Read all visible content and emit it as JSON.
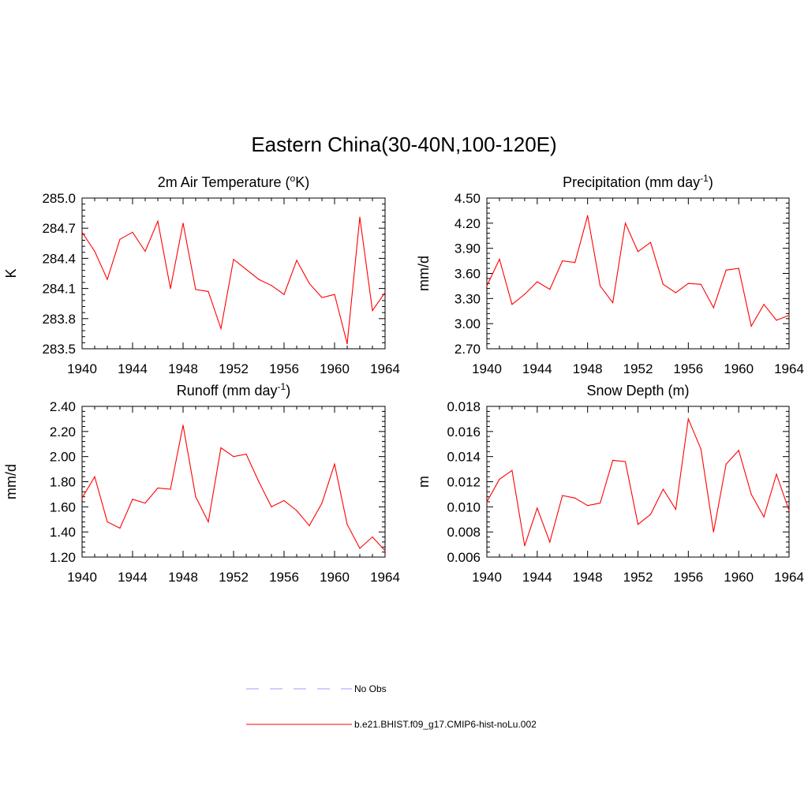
{
  "figure_title": "Eastern China(30-40N,100-120E)",
  "legend": {
    "entries": [
      {
        "label": "No Obs",
        "style": "dashed",
        "color": "#b0b0ff"
      },
      {
        "label": "b.e21.BHIST.f09_g17.CMIP6-hist-noLu.002",
        "style": "solid",
        "color": "#ff0000"
      }
    ]
  },
  "chart_data": [
    {
      "type": "line",
      "title": "2m Air Temperature (°K)",
      "title_parts": [
        "2m Air Temperature (",
        "o",
        "K)"
      ],
      "xlabel": "",
      "ylabel": "K",
      "xlim": [
        1940,
        1964
      ],
      "ylim": [
        283.5,
        285.0
      ],
      "x_ticks": [
        1940,
        1944,
        1948,
        1952,
        1956,
        1960,
        1964
      ],
      "y_ticks": [
        "283.5",
        "283.8",
        "284.1",
        "284.4",
        "284.7",
        "285.0"
      ],
      "series": [
        {
          "color": "#ff0000",
          "x": [
            1940,
            1941,
            1942,
            1943,
            1944,
            1945,
            1946,
            1947,
            1948,
            1949,
            1950,
            1951,
            1952,
            1953,
            1954,
            1955,
            1956,
            1957,
            1958,
            1959,
            1960,
            1961,
            1962,
            1963,
            1964
          ],
          "y": [
            284.66,
            284.47,
            284.19,
            284.59,
            284.66,
            284.47,
            284.77,
            284.1,
            284.75,
            284.09,
            284.07,
            283.7,
            284.39,
            284.29,
            284.19,
            284.13,
            284.04,
            284.38,
            284.15,
            284.01,
            284.04,
            283.55,
            284.81,
            283.88,
            284.06
          ]
        }
      ]
    },
    {
      "type": "line",
      "title": "Precipitation (mm day-1)",
      "title_parts": [
        "Precipitation (mm day",
        "-1",
        ")"
      ],
      "xlabel": "",
      "ylabel": "mm/d",
      "xlim": [
        1940,
        1964
      ],
      "ylim": [
        2.7,
        4.5
      ],
      "x_ticks": [
        1940,
        1944,
        1948,
        1952,
        1956,
        1960,
        1964
      ],
      "y_ticks": [
        "2.70",
        "3.00",
        "3.30",
        "3.60",
        "3.90",
        "4.20",
        "4.50"
      ],
      "series": [
        {
          "color": "#ff0000",
          "x": [
            1940,
            1941,
            1942,
            1943,
            1944,
            1945,
            1946,
            1947,
            1948,
            1949,
            1950,
            1951,
            1952,
            1953,
            1954,
            1955,
            1956,
            1957,
            1958,
            1959,
            1960,
            1961,
            1962,
            1963,
            1964
          ],
          "y": [
            3.45,
            3.77,
            3.23,
            3.35,
            3.5,
            3.41,
            3.75,
            3.73,
            4.29,
            3.45,
            3.25,
            4.2,
            3.86,
            3.97,
            3.47,
            3.37,
            3.48,
            3.47,
            3.19,
            3.64,
            3.66,
            2.97,
            3.23,
            3.04,
            3.1
          ]
        }
      ]
    },
    {
      "type": "line",
      "title": "Runoff (mm day-1)",
      "title_parts": [
        "Runoff (mm day",
        "-1",
        ")"
      ],
      "xlabel": "",
      "ylabel": "mm/d",
      "xlim": [
        1940,
        1964
      ],
      "ylim": [
        1.2,
        2.4
      ],
      "x_ticks": [
        1940,
        1944,
        1948,
        1952,
        1956,
        1960,
        1964
      ],
      "y_ticks": [
        "1.20",
        "1.40",
        "1.60",
        "1.80",
        "2.00",
        "2.20",
        "2.40"
      ],
      "series": [
        {
          "color": "#ff0000",
          "x": [
            1940,
            1941,
            1942,
            1943,
            1944,
            1945,
            1946,
            1947,
            1948,
            1949,
            1950,
            1951,
            1952,
            1953,
            1954,
            1955,
            1956,
            1957,
            1958,
            1959,
            1960,
            1961,
            1962,
            1963,
            1964
          ],
          "y": [
            1.67,
            1.84,
            1.48,
            1.43,
            1.66,
            1.63,
            1.75,
            1.74,
            2.25,
            1.68,
            1.48,
            2.07,
            2.0,
            2.02,
            1.8,
            1.6,
            1.65,
            1.57,
            1.45,
            1.63,
            1.94,
            1.46,
            1.27,
            1.36,
            1.25
          ]
        }
      ]
    },
    {
      "type": "line",
      "title": "Snow Depth (m)",
      "title_parts": [
        "Snow Depth (m)"
      ],
      "xlabel": "",
      "ylabel": "m",
      "xlim": [
        1940,
        1964
      ],
      "ylim": [
        0.006,
        0.018
      ],
      "x_ticks": [
        1940,
        1944,
        1948,
        1952,
        1956,
        1960,
        1964
      ],
      "y_ticks": [
        "0.006",
        "0.008",
        "0.010",
        "0.012",
        "0.014",
        "0.016",
        "0.018"
      ],
      "series": [
        {
          "color": "#ff0000",
          "x": [
            1940,
            1941,
            1942,
            1943,
            1944,
            1945,
            1946,
            1947,
            1948,
            1949,
            1950,
            1951,
            1952,
            1953,
            1954,
            1955,
            1956,
            1957,
            1958,
            1959,
            1960,
            1961,
            1962,
            1963,
            1964
          ],
          "y": [
            0.0104,
            0.0122,
            0.0129,
            0.0069,
            0.0099,
            0.0072,
            0.0109,
            0.0107,
            0.0101,
            0.0103,
            0.0137,
            0.0136,
            0.0086,
            0.0094,
            0.0114,
            0.0098,
            0.017,
            0.0146,
            0.008,
            0.0134,
            0.0145,
            0.011,
            0.0092,
            0.0126,
            0.0097
          ]
        }
      ]
    }
  ]
}
